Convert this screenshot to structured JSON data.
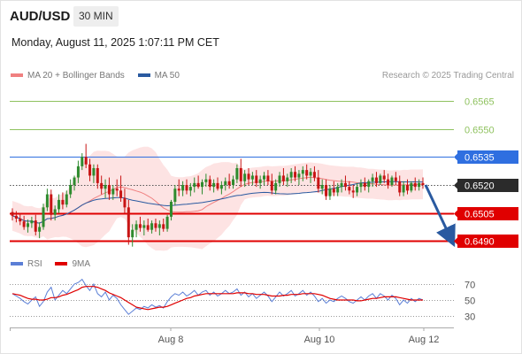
{
  "header": {
    "symbol": "AUD/USD",
    "timeframe": "30 MIN",
    "datetime": "Monday, August 11, 2025 1:07:11 PM CET"
  },
  "legend": {
    "ma20": {
      "label": "MA 20 + Bollinger Bands",
      "color": "#f08080"
    },
    "ma50": {
      "label": "MA 50",
      "color": "#2a5aa0"
    },
    "rsi": {
      "label": "RSI",
      "color": "#5b7fd6"
    },
    "ma9": {
      "label": "9MA",
      "color": "#e00000"
    }
  },
  "credit": "Research © 2025 Trading Central",
  "colors": {
    "up": "#2e8b2e",
    "down": "#c81414",
    "resistance_green": "#8fc25f",
    "level_blue": "#2f6fe0",
    "support_red": "#e00000",
    "current": "#555555",
    "arrow": "#2a5aa0",
    "band": "#fde0e0"
  },
  "chart_data": {
    "type": "candlestick",
    "y_range": [
      0.6484,
      0.6574
    ],
    "levels": [
      {
        "value": 0.6565,
        "label": "0.6565",
        "kind": "resistance",
        "style": "green-line"
      },
      {
        "value": 0.655,
        "label": "0.6550",
        "kind": "resistance",
        "style": "green-line"
      },
      {
        "value": 0.6535,
        "label": "0.6535",
        "kind": "pivot",
        "style": "blue-line"
      },
      {
        "value": 0.652,
        "label": "0.6520",
        "kind": "current",
        "style": "dotted"
      },
      {
        "value": 0.6505,
        "label": "0.6505",
        "kind": "support",
        "style": "red-line"
      },
      {
        "value": 0.649,
        "label": "0.6490",
        "kind": "support",
        "style": "red-line"
      }
    ],
    "x_ticks": [
      "Aug 8",
      "Aug 10",
      "Aug 12"
    ],
    "forecast": {
      "from": 0.652,
      "to": 0.649
    },
    "ohlc": [
      {
        "o": 0.65055,
        "h": 0.65075,
        "l": 0.6501,
        "c": 0.65035
      },
      {
        "o": 0.65035,
        "h": 0.6506,
        "l": 0.65,
        "c": 0.6502
      },
      {
        "o": 0.6502,
        "h": 0.6505,
        "l": 0.64985,
        "c": 0.65005
      },
      {
        "o": 0.65005,
        "h": 0.65035,
        "l": 0.6496,
        "c": 0.64975
      },
      {
        "o": 0.64975,
        "h": 0.65015,
        "l": 0.64945,
        "c": 0.64995
      },
      {
        "o": 0.64995,
        "h": 0.6503,
        "l": 0.6497,
        "c": 0.6501
      },
      {
        "o": 0.6501,
        "h": 0.6504,
        "l": 0.6493,
        "c": 0.6495
      },
      {
        "o": 0.6495,
        "h": 0.65,
        "l": 0.64915,
        "c": 0.64975
      },
      {
        "o": 0.64975,
        "h": 0.651,
        "l": 0.6496,
        "c": 0.6508
      },
      {
        "o": 0.6508,
        "h": 0.6518,
        "l": 0.6506,
        "c": 0.6515
      },
      {
        "o": 0.6515,
        "h": 0.65175,
        "l": 0.6501,
        "c": 0.6504
      },
      {
        "o": 0.6504,
        "h": 0.6509,
        "l": 0.6501,
        "c": 0.6507
      },
      {
        "o": 0.6507,
        "h": 0.6515,
        "l": 0.6505,
        "c": 0.6512
      },
      {
        "o": 0.6512,
        "h": 0.6516,
        "l": 0.6507,
        "c": 0.65095
      },
      {
        "o": 0.65095,
        "h": 0.6517,
        "l": 0.6508,
        "c": 0.6515
      },
      {
        "o": 0.6515,
        "h": 0.6523,
        "l": 0.6513,
        "c": 0.652
      },
      {
        "o": 0.652,
        "h": 0.6525,
        "l": 0.6517,
        "c": 0.6524
      },
      {
        "o": 0.6524,
        "h": 0.6533,
        "l": 0.6521,
        "c": 0.653
      },
      {
        "o": 0.653,
        "h": 0.6537,
        "l": 0.6528,
        "c": 0.6535
      },
      {
        "o": 0.6535,
        "h": 0.6542,
        "l": 0.6529,
        "c": 0.6531
      },
      {
        "o": 0.6531,
        "h": 0.6534,
        "l": 0.6522,
        "c": 0.6525
      },
      {
        "o": 0.6525,
        "h": 0.6531,
        "l": 0.6521,
        "c": 0.6529
      },
      {
        "o": 0.6529,
        "h": 0.6531,
        "l": 0.6518,
        "c": 0.6521
      },
      {
        "o": 0.6521,
        "h": 0.6525,
        "l": 0.6515,
        "c": 0.6518
      },
      {
        "o": 0.6518,
        "h": 0.6523,
        "l": 0.6513,
        "c": 0.652
      },
      {
        "o": 0.652,
        "h": 0.6524,
        "l": 0.6512,
        "c": 0.6515
      },
      {
        "o": 0.6515,
        "h": 0.652,
        "l": 0.6512,
        "c": 0.6518
      },
      {
        "o": 0.6518,
        "h": 0.6523,
        "l": 0.6514,
        "c": 0.6517
      },
      {
        "o": 0.6517,
        "h": 0.6525,
        "l": 0.6511,
        "c": 0.6513
      },
      {
        "o": 0.6513,
        "h": 0.6518,
        "l": 0.6505,
        "c": 0.6508
      },
      {
        "o": 0.6508,
        "h": 0.6512,
        "l": 0.6488,
        "c": 0.6492
      },
      {
        "o": 0.6492,
        "h": 0.6499,
        "l": 0.6487,
        "c": 0.6496
      },
      {
        "o": 0.6496,
        "h": 0.6501,
        "l": 0.6492,
        "c": 0.6499
      },
      {
        "o": 0.6499,
        "h": 0.6503,
        "l": 0.6495,
        "c": 0.6497
      },
      {
        "o": 0.6497,
        "h": 0.6501,
        "l": 0.6493,
        "c": 0.64985
      },
      {
        "o": 0.64985,
        "h": 0.6502,
        "l": 0.6495,
        "c": 0.6496
      },
      {
        "o": 0.6496,
        "h": 0.6501,
        "l": 0.6494,
        "c": 0.64995
      },
      {
        "o": 0.64995,
        "h": 0.6502,
        "l": 0.6495,
        "c": 0.6497
      },
      {
        "o": 0.6497,
        "h": 0.6501,
        "l": 0.6493,
        "c": 0.6499
      },
      {
        "o": 0.6499,
        "h": 0.6502,
        "l": 0.6495,
        "c": 0.64965
      },
      {
        "o": 0.64965,
        "h": 0.6504,
        "l": 0.6495,
        "c": 0.6503
      },
      {
        "o": 0.6503,
        "h": 0.6512,
        "l": 0.6501,
        "c": 0.6511
      },
      {
        "o": 0.6511,
        "h": 0.652,
        "l": 0.6509,
        "c": 0.6518
      },
      {
        "o": 0.6518,
        "h": 0.6523,
        "l": 0.6514,
        "c": 0.6517
      },
      {
        "o": 0.6517,
        "h": 0.6522,
        "l": 0.6514,
        "c": 0.652
      },
      {
        "o": 0.652,
        "h": 0.6523,
        "l": 0.6515,
        "c": 0.6517
      },
      {
        "o": 0.6517,
        "h": 0.6521,
        "l": 0.6514,
        "c": 0.6519
      },
      {
        "o": 0.6519,
        "h": 0.6524,
        "l": 0.6516,
        "c": 0.6521
      },
      {
        "o": 0.6521,
        "h": 0.6525,
        "l": 0.6518,
        "c": 0.6519
      },
      {
        "o": 0.6519,
        "h": 0.6523,
        "l": 0.6515,
        "c": 0.65215
      },
      {
        "o": 0.65215,
        "h": 0.6526,
        "l": 0.6519,
        "c": 0.6523
      },
      {
        "o": 0.6523,
        "h": 0.6525,
        "l": 0.6517,
        "c": 0.6519
      },
      {
        "o": 0.6519,
        "h": 0.6523,
        "l": 0.6516,
        "c": 0.6521
      },
      {
        "o": 0.6521,
        "h": 0.6524,
        "l": 0.6517,
        "c": 0.6518
      },
      {
        "o": 0.6518,
        "h": 0.6522,
        "l": 0.6515,
        "c": 0.652
      },
      {
        "o": 0.652,
        "h": 0.6524,
        "l": 0.6517,
        "c": 0.6522
      },
      {
        "o": 0.6522,
        "h": 0.6526,
        "l": 0.6518,
        "c": 0.652
      },
      {
        "o": 0.652,
        "h": 0.6525,
        "l": 0.6518,
        "c": 0.6523
      },
      {
        "o": 0.6523,
        "h": 0.6531,
        "l": 0.6521,
        "c": 0.6529
      },
      {
        "o": 0.6529,
        "h": 0.6534,
        "l": 0.6519,
        "c": 0.6522
      },
      {
        "o": 0.6522,
        "h": 0.6528,
        "l": 0.6519,
        "c": 0.6526
      },
      {
        "o": 0.6526,
        "h": 0.6529,
        "l": 0.652,
        "c": 0.6523
      },
      {
        "o": 0.6523,
        "h": 0.6527,
        "l": 0.652,
        "c": 0.6525
      },
      {
        "o": 0.6525,
        "h": 0.6528,
        "l": 0.6519,
        "c": 0.6521
      },
      {
        "o": 0.6521,
        "h": 0.6525,
        "l": 0.6518,
        "c": 0.6523
      },
      {
        "o": 0.6523,
        "h": 0.6527,
        "l": 0.652,
        "c": 0.6525
      },
      {
        "o": 0.6525,
        "h": 0.6528,
        "l": 0.652,
        "c": 0.6522
      },
      {
        "o": 0.6522,
        "h": 0.6526,
        "l": 0.6515,
        "c": 0.6517
      },
      {
        "o": 0.6517,
        "h": 0.6523,
        "l": 0.6515,
        "c": 0.6521
      },
      {
        "o": 0.6521,
        "h": 0.6527,
        "l": 0.6519,
        "c": 0.6525
      },
      {
        "o": 0.6525,
        "h": 0.6529,
        "l": 0.652,
        "c": 0.6522
      },
      {
        "o": 0.6522,
        "h": 0.6526,
        "l": 0.6519,
        "c": 0.6524
      },
      {
        "o": 0.6524,
        "h": 0.6529,
        "l": 0.6521,
        "c": 0.6527
      },
      {
        "o": 0.6527,
        "h": 0.653,
        "l": 0.6522,
        "c": 0.6524
      },
      {
        "o": 0.6524,
        "h": 0.6528,
        "l": 0.652,
        "c": 0.6526
      },
      {
        "o": 0.6526,
        "h": 0.653,
        "l": 0.6522,
        "c": 0.6528
      },
      {
        "o": 0.6528,
        "h": 0.6531,
        "l": 0.6523,
        "c": 0.6525
      },
      {
        "o": 0.6525,
        "h": 0.6529,
        "l": 0.6521,
        "c": 0.6527
      },
      {
        "o": 0.6527,
        "h": 0.653,
        "l": 0.6522,
        "c": 0.6524
      },
      {
        "o": 0.6524,
        "h": 0.6528,
        "l": 0.6516,
        "c": 0.6518
      },
      {
        "o": 0.6518,
        "h": 0.6523,
        "l": 0.6515,
        "c": 0.652
      },
      {
        "o": 0.652,
        "h": 0.6523,
        "l": 0.6512,
        "c": 0.6514
      },
      {
        "o": 0.6514,
        "h": 0.652,
        "l": 0.6512,
        "c": 0.6518
      },
      {
        "o": 0.6518,
        "h": 0.6522,
        "l": 0.6514,
        "c": 0.6516
      },
      {
        "o": 0.6516,
        "h": 0.6521,
        "l": 0.6514,
        "c": 0.6519
      },
      {
        "o": 0.6519,
        "h": 0.6523,
        "l": 0.6516,
        "c": 0.6521
      },
      {
        "o": 0.6521,
        "h": 0.6525,
        "l": 0.6517,
        "c": 0.6519
      },
      {
        "o": 0.6519,
        "h": 0.6522,
        "l": 0.6515,
        "c": 0.6517
      },
      {
        "o": 0.6517,
        "h": 0.652,
        "l": 0.6513,
        "c": 0.6516
      },
      {
        "o": 0.6516,
        "h": 0.6521,
        "l": 0.6514,
        "c": 0.6519
      },
      {
        "o": 0.6519,
        "h": 0.6523,
        "l": 0.6516,
        "c": 0.6521
      },
      {
        "o": 0.6521,
        "h": 0.6524,
        "l": 0.6517,
        "c": 0.6519
      },
      {
        "o": 0.6519,
        "h": 0.6523,
        "l": 0.6516,
        "c": 0.6522
      },
      {
        "o": 0.6522,
        "h": 0.6526,
        "l": 0.6519,
        "c": 0.6524
      },
      {
        "o": 0.6524,
        "h": 0.6527,
        "l": 0.6519,
        "c": 0.6521
      },
      {
        "o": 0.6521,
        "h": 0.6526,
        "l": 0.652,
        "c": 0.6525
      },
      {
        "o": 0.6525,
        "h": 0.6528,
        "l": 0.6521,
        "c": 0.6523
      },
      {
        "o": 0.6523,
        "h": 0.6526,
        "l": 0.6518,
        "c": 0.652
      },
      {
        "o": 0.652,
        "h": 0.6525,
        "l": 0.6519,
        "c": 0.6524
      },
      {
        "o": 0.6524,
        "h": 0.6527,
        "l": 0.652,
        "c": 0.6522
      },
      {
        "o": 0.6522,
        "h": 0.6525,
        "l": 0.6514,
        "c": 0.6516
      },
      {
        "o": 0.6516,
        "h": 0.6522,
        "l": 0.6514,
        "c": 0.652
      },
      {
        "o": 0.652,
        "h": 0.6523,
        "l": 0.6515,
        "c": 0.6517
      },
      {
        "o": 0.6517,
        "h": 0.6522,
        "l": 0.6516,
        "c": 0.6521
      },
      {
        "o": 0.6521,
        "h": 0.6524,
        "l": 0.6517,
        "c": 0.6519
      },
      {
        "o": 0.6519,
        "h": 0.6523,
        "l": 0.6517,
        "c": 0.6521
      },
      {
        "o": 0.6521,
        "h": 0.6524,
        "l": 0.6518,
        "c": 0.652
      }
    ]
  },
  "rsi_data": {
    "ticks": [
      70,
      50,
      30
    ],
    "range": [
      20,
      80
    ],
    "rsi": [
      58,
      55,
      52,
      48,
      45,
      50,
      54,
      42,
      48,
      60,
      66,
      50,
      56,
      62,
      58,
      64,
      70,
      72,
      76,
      68,
      62,
      70,
      58,
      54,
      60,
      50,
      56,
      52,
      44,
      38,
      32,
      36,
      40,
      38,
      42,
      40,
      44,
      41,
      43,
      40,
      48,
      54,
      58,
      56,
      60,
      55,
      58,
      62,
      56,
      60,
      62,
      56,
      60,
      55,
      58,
      62,
      58,
      60,
      64,
      56,
      60,
      54,
      58,
      52,
      56,
      60,
      55,
      48,
      54,
      60,
      55,
      58,
      62,
      55,
      58,
      62,
      56,
      60,
      55,
      48,
      52,
      46,
      50,
      48,
      52,
      55,
      52,
      48,
      46,
      50,
      54,
      50,
      55,
      58,
      52,
      58,
      55,
      50,
      56,
      52,
      44,
      50,
      46,
      52,
      48,
      52,
      50
    ],
    "ma9": [
      58,
      57,
      56,
      54,
      52,
      51,
      51,
      50,
      50,
      51,
      53,
      53,
      54,
      56,
      57,
      59,
      61,
      63,
      66,
      67,
      67,
      67,
      66,
      64,
      62,
      59,
      57,
      55,
      53,
      50,
      47,
      44,
      41,
      40,
      39,
      38,
      39,
      40,
      41,
      41,
      42,
      44,
      46,
      48,
      50,
      52,
      53,
      55,
      56,
      57,
      58,
      58,
      58,
      58,
      58,
      58,
      58,
      58,
      59,
      59,
      59,
      58,
      58,
      57,
      57,
      57,
      56,
      55,
      55,
      55,
      56,
      56,
      57,
      57,
      57,
      58,
      58,
      58,
      58,
      57,
      56,
      54,
      52,
      51,
      50,
      50,
      50,
      50,
      50,
      49,
      49,
      50,
      51,
      52,
      52,
      53,
      54,
      54,
      54,
      54,
      53,
      52,
      51,
      50,
      50,
      50,
      50
    ]
  }
}
